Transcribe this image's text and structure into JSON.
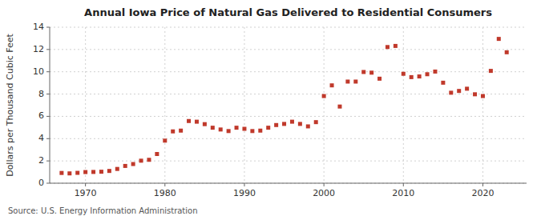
{
  "chart_data": {
    "type": "scatter",
    "title": "Annual Iowa Price of Natural Gas Delivered to Residential Consumers",
    "ylabel": "Dollars per Thousand Cubic Feet",
    "annotations": [
      "Source: U.S. Energy Information Administration"
    ],
    "x": [
      1967,
      1968,
      1969,
      1970,
      1971,
      1972,
      1973,
      1974,
      1975,
      1976,
      1977,
      1978,
      1979,
      1980,
      1981,
      1982,
      1983,
      1984,
      1985,
      1986,
      1987,
      1988,
      1989,
      1990,
      1991,
      1992,
      1993,
      1994,
      1995,
      1996,
      1997,
      1998,
      1999,
      2000,
      2001,
      2002,
      2003,
      2004,
      2005,
      2006,
      2007,
      2008,
      2009,
      2010,
      2011,
      2012,
      2013,
      2014,
      2015,
      2016,
      2017,
      2018,
      2019,
      2020,
      2021,
      2022,
      2023
    ],
    "values": [
      0.92,
      0.88,
      0.93,
      1.0,
      1.01,
      1.03,
      1.1,
      1.28,
      1.55,
      1.72,
      2.02,
      2.1,
      2.62,
      3.82,
      4.65,
      4.72,
      5.58,
      5.52,
      5.3,
      4.98,
      4.82,
      4.68,
      4.98,
      4.88,
      4.68,
      4.72,
      4.98,
      5.22,
      5.32,
      5.52,
      5.32,
      5.1,
      5.48,
      7.82,
      8.78,
      6.88,
      9.12,
      9.12,
      9.98,
      9.92,
      9.38,
      12.22,
      12.32,
      9.82,
      9.52,
      9.58,
      9.78,
      10.02,
      9.02,
      8.12,
      8.28,
      8.48,
      7.98,
      7.82,
      10.08,
      12.95,
      11.75
    ],
    "color": "#c0392b",
    "marker": "square",
    "xlim": [
      1965.5,
      2025.5
    ],
    "xticks": [
      1970,
      1980,
      1990,
      2000,
      2010,
      2020
    ],
    "ylim": [
      0,
      14
    ],
    "yticks": [
      0,
      2,
      4,
      6,
      8,
      10,
      12,
      14
    ],
    "grid": true
  }
}
